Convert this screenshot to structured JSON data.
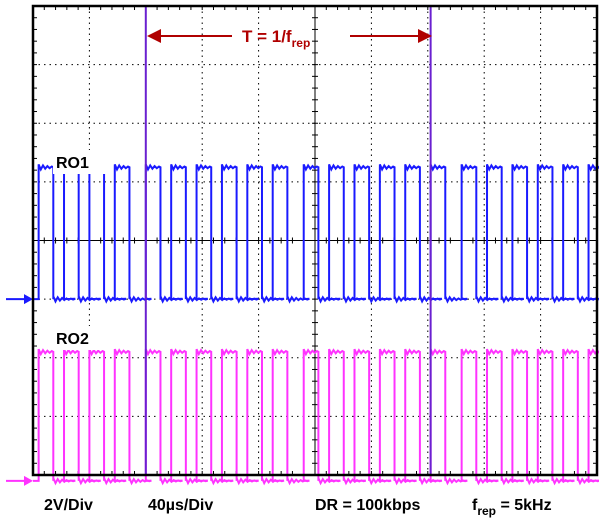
{
  "chart_data": {
    "type": "line",
    "title": "",
    "grid": {
      "x_divisions": 10,
      "y_divisions": 8,
      "on": true
    },
    "series": [
      {
        "name": "RO1",
        "color": "#1a1aff",
        "high_div": 5.25,
        "low_div": 3.0,
        "marker_div": 3.0
      },
      {
        "name": "RO2",
        "color": "#ff33ff",
        "high_div": 2.1,
        "low_div": -0.1,
        "marker_div": -0.1
      }
    ],
    "pulse_starts_div": [
      0.1,
      0.55,
      1.0,
      1.45,
      2.0,
      2.45,
      2.9,
      3.35,
      3.8,
      4.25,
      4.8,
      5.25,
      5.7,
      6.15,
      6.6,
      7.05,
      7.6,
      8.05,
      8.5,
      8.95,
      9.4,
      9.85
    ],
    "pulse_width_div": 0.26,
    "cursors_div": [
      2.0,
      7.05
    ],
    "cursor_color": "#6a20d0",
    "period_annotation": {
      "prefix": "T = 1/f",
      "sub": "rep",
      "color": "#b00000"
    },
    "footer": {
      "volts": "2V/Div",
      "time": "40µs/Div",
      "dr": "DR = 100kbps",
      "frep_main": "f",
      "frep_sub": "rep",
      "frep_tail": " = 5kHz"
    }
  }
}
